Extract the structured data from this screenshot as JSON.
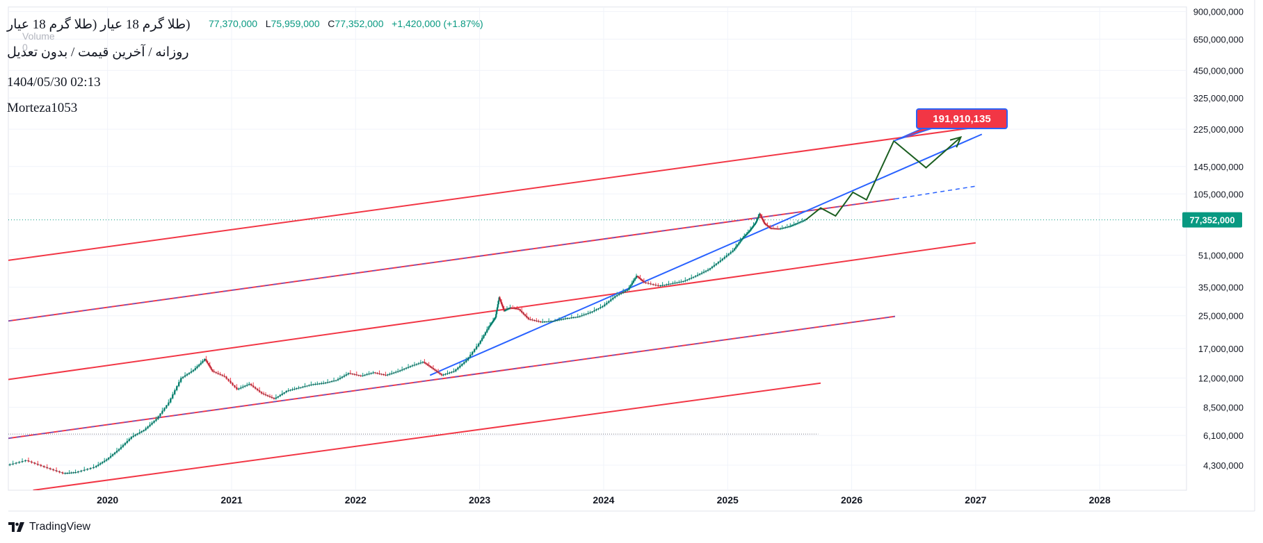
{
  "header": {
    "symbol_title": "(طلا گرم 18 عیار (طلا گرم 18 عیار",
    "subtitle": "روزانه / آخرین قیمت / بدون تعدیل",
    "datetime": "1404/05/30 02:13",
    "author": "Morteza1053",
    "volume_label": "Volume",
    "volume_value": "0"
  },
  "ohlc": {
    "h": "77,370,000",
    "l_label": "L",
    "l": "75,959,000",
    "c_label": "C",
    "c": "77,352,000",
    "change": "+1,420,000 (+1.87%)"
  },
  "brand": "TradingView",
  "colors": {
    "up": "#089981",
    "down": "#f23645",
    "channel": "#f23645",
    "trend": "#2962ff",
    "projection": "#1b5e20",
    "target_label_bg": "#f23645",
    "grid": "#f0f3fa"
  },
  "chart_data": {
    "type": "line",
    "symbol": "طلا گرم 18 عیار",
    "scale": "log",
    "x_ticks": [
      "2020",
      "2021",
      "2022",
      "2023",
      "2024",
      "2025",
      "2026",
      "2027",
      "2028"
    ],
    "y_ticks": [
      "900,000,000",
      "650,000,000",
      "450,000,000",
      "325,000,000",
      "225,000,000",
      "145,000,000",
      "105,000,000",
      "51,000,000",
      "35,000,000",
      "25,000,000",
      "17,000,000",
      "12,000,000",
      "8,500,000",
      "6,100,000",
      "4,300,000"
    ],
    "x_range": [
      2019.2,
      2028.7
    ],
    "y_range": [
      3200000,
      950000000
    ],
    "last_price": 77352000,
    "last_price_label": "77,352,000",
    "target_label": "191,910,135",
    "price_series": [
      [
        2019.2,
        4300000
      ],
      [
        2019.35,
        4550000
      ],
      [
        2019.5,
        4200000
      ],
      [
        2019.65,
        3900000
      ],
      [
        2019.75,
        3950000
      ],
      [
        2019.9,
        4200000
      ],
      [
        2020.0,
        4600000
      ],
      [
        2020.1,
        5200000
      ],
      [
        2020.2,
        6000000
      ],
      [
        2020.3,
        6500000
      ],
      [
        2020.4,
        7400000
      ],
      [
        2020.5,
        9000000
      ],
      [
        2020.6,
        12000000
      ],
      [
        2020.7,
        13200000
      ],
      [
        2020.79,
        15000000
      ],
      [
        2020.85,
        13000000
      ],
      [
        2020.95,
        12200000
      ],
      [
        2021.05,
        10500000
      ],
      [
        2021.15,
        11200000
      ],
      [
        2021.25,
        10000000
      ],
      [
        2021.35,
        9400000
      ],
      [
        2021.45,
        10300000
      ],
      [
        2021.55,
        10700000
      ],
      [
        2021.65,
        11100000
      ],
      [
        2021.75,
        11300000
      ],
      [
        2021.85,
        11700000
      ],
      [
        2021.95,
        12700000
      ],
      [
        2022.05,
        12300000
      ],
      [
        2022.15,
        12800000
      ],
      [
        2022.25,
        12400000
      ],
      [
        2022.35,
        13000000
      ],
      [
        2022.45,
        13800000
      ],
      [
        2022.55,
        14500000
      ],
      [
        2022.62,
        13500000
      ],
      [
        2022.7,
        12400000
      ],
      [
        2022.8,
        13000000
      ],
      [
        2022.9,
        14800000
      ],
      [
        2023.0,
        18000000
      ],
      [
        2023.08,
        22000000
      ],
      [
        2023.13,
        24500000
      ],
      [
        2023.16,
        31000000
      ],
      [
        2023.2,
        26500000
      ],
      [
        2023.25,
        27500000
      ],
      [
        2023.32,
        27000000
      ],
      [
        2023.4,
        24000000
      ],
      [
        2023.5,
        23200000
      ],
      [
        2023.6,
        23500000
      ],
      [
        2023.7,
        24200000
      ],
      [
        2023.8,
        24700000
      ],
      [
        2023.9,
        26000000
      ],
      [
        2024.0,
        28000000
      ],
      [
        2024.1,
        31500000
      ],
      [
        2024.2,
        34000000
      ],
      [
        2024.27,
        40000000
      ],
      [
        2024.33,
        37000000
      ],
      [
        2024.45,
        35500000
      ],
      [
        2024.55,
        36500000
      ],
      [
        2024.65,
        37500000
      ],
      [
        2024.75,
        40000000
      ],
      [
        2024.85,
        43000000
      ],
      [
        2024.95,
        48000000
      ],
      [
        2025.05,
        54000000
      ],
      [
        2025.12,
        62000000
      ],
      [
        2025.18,
        68000000
      ],
      [
        2025.23,
        75000000
      ],
      [
        2025.26,
        83000000
      ],
      [
        2025.3,
        74000000
      ],
      [
        2025.35,
        70000000
      ],
      [
        2025.42,
        69500000
      ],
      [
        2025.5,
        71500000
      ],
      [
        2025.56,
        74000000
      ],
      [
        2025.63,
        77352000
      ]
    ],
    "channel_lines": [
      [
        [
          2019.2,
          48000000
        ],
        [
          2027.0,
          230000000
        ]
      ],
      [
        [
          2019.2,
          23500000
        ],
        [
          2026.35,
          99000000
        ]
      ],
      [
        [
          2019.2,
          11800000
        ],
        [
          2027.0,
          59000000
        ]
      ],
      [
        [
          2019.2,
          5900000
        ],
        [
          2026.35,
          24800000
        ]
      ],
      [
        [
          2019.4,
          3200000
        ],
        [
          2025.75,
          11300000
        ]
      ]
    ],
    "channel_dashed_extension": [
      [
        2026.35,
        99000000
      ],
      [
        2027.0,
        115000000
      ]
    ],
    "trend_line": [
      [
        2022.6,
        12400000
      ],
      [
        2027.05,
        212000000
      ]
    ],
    "horizontal_line": 6200000,
    "horizontal_line_end": 2025.73,
    "projection_path": [
      [
        2025.63,
        77352000
      ],
      [
        2025.75,
        89000000
      ],
      [
        2025.87,
        81000000
      ],
      [
        2026.01,
        107000000
      ],
      [
        2026.12,
        98000000
      ],
      [
        2026.34,
        196000000
      ],
      [
        2026.6,
        143000000
      ],
      [
        2026.88,
        205000000
      ]
    ]
  }
}
